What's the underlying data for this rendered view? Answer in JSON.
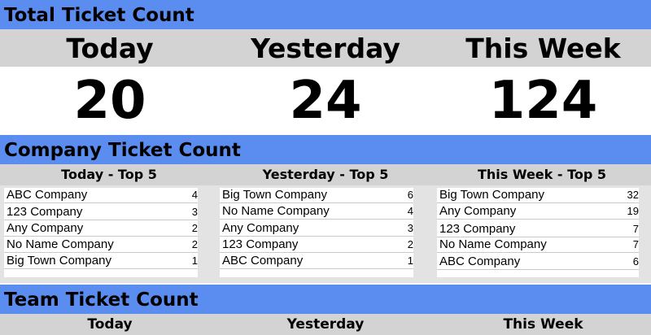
{
  "total": {
    "section_title": "Total Ticket Count",
    "headers": [
      "Today",
      "Yesterday",
      "This Week"
    ],
    "values": [
      "20",
      "24",
      "124"
    ]
  },
  "company": {
    "section_title": "Company Ticket Count",
    "columns": [
      {
        "header": "Today - Top 5",
        "rows": [
          {
            "name": "ABC Company",
            "count": "4"
          },
          {
            "name": "123 Company",
            "count": "3"
          },
          {
            "name": "Any Company",
            "count": "2"
          },
          {
            "name": "No Name Company",
            "count": "2"
          },
          {
            "name": "Big Town Company",
            "count": "1"
          }
        ]
      },
      {
        "header": "Yesterday - Top 5",
        "rows": [
          {
            "name": "Big Town Company",
            "count": "6"
          },
          {
            "name": "No Name Company",
            "count": "4"
          },
          {
            "name": "Any Company",
            "count": "3"
          },
          {
            "name": "123 Company",
            "count": "2"
          },
          {
            "name": "ABC Company",
            "count": "1"
          }
        ]
      },
      {
        "header": "This Week - Top 5",
        "rows": [
          {
            "name": "Big Town Company",
            "count": "32"
          },
          {
            "name": "Any Company",
            "count": "19"
          },
          {
            "name": "123 Company",
            "count": "7"
          },
          {
            "name": "No Name Company",
            "count": "7"
          },
          {
            "name": "ABC Company",
            "count": "6"
          }
        ]
      }
    ]
  },
  "team": {
    "section_title": "Team Ticket Count",
    "headers": [
      "Today",
      "Yesterday",
      "This Week"
    ]
  },
  "colors": {
    "section_band": "#5b8cf0",
    "header_band": "#d3d3d3",
    "background": "#ffffff"
  }
}
